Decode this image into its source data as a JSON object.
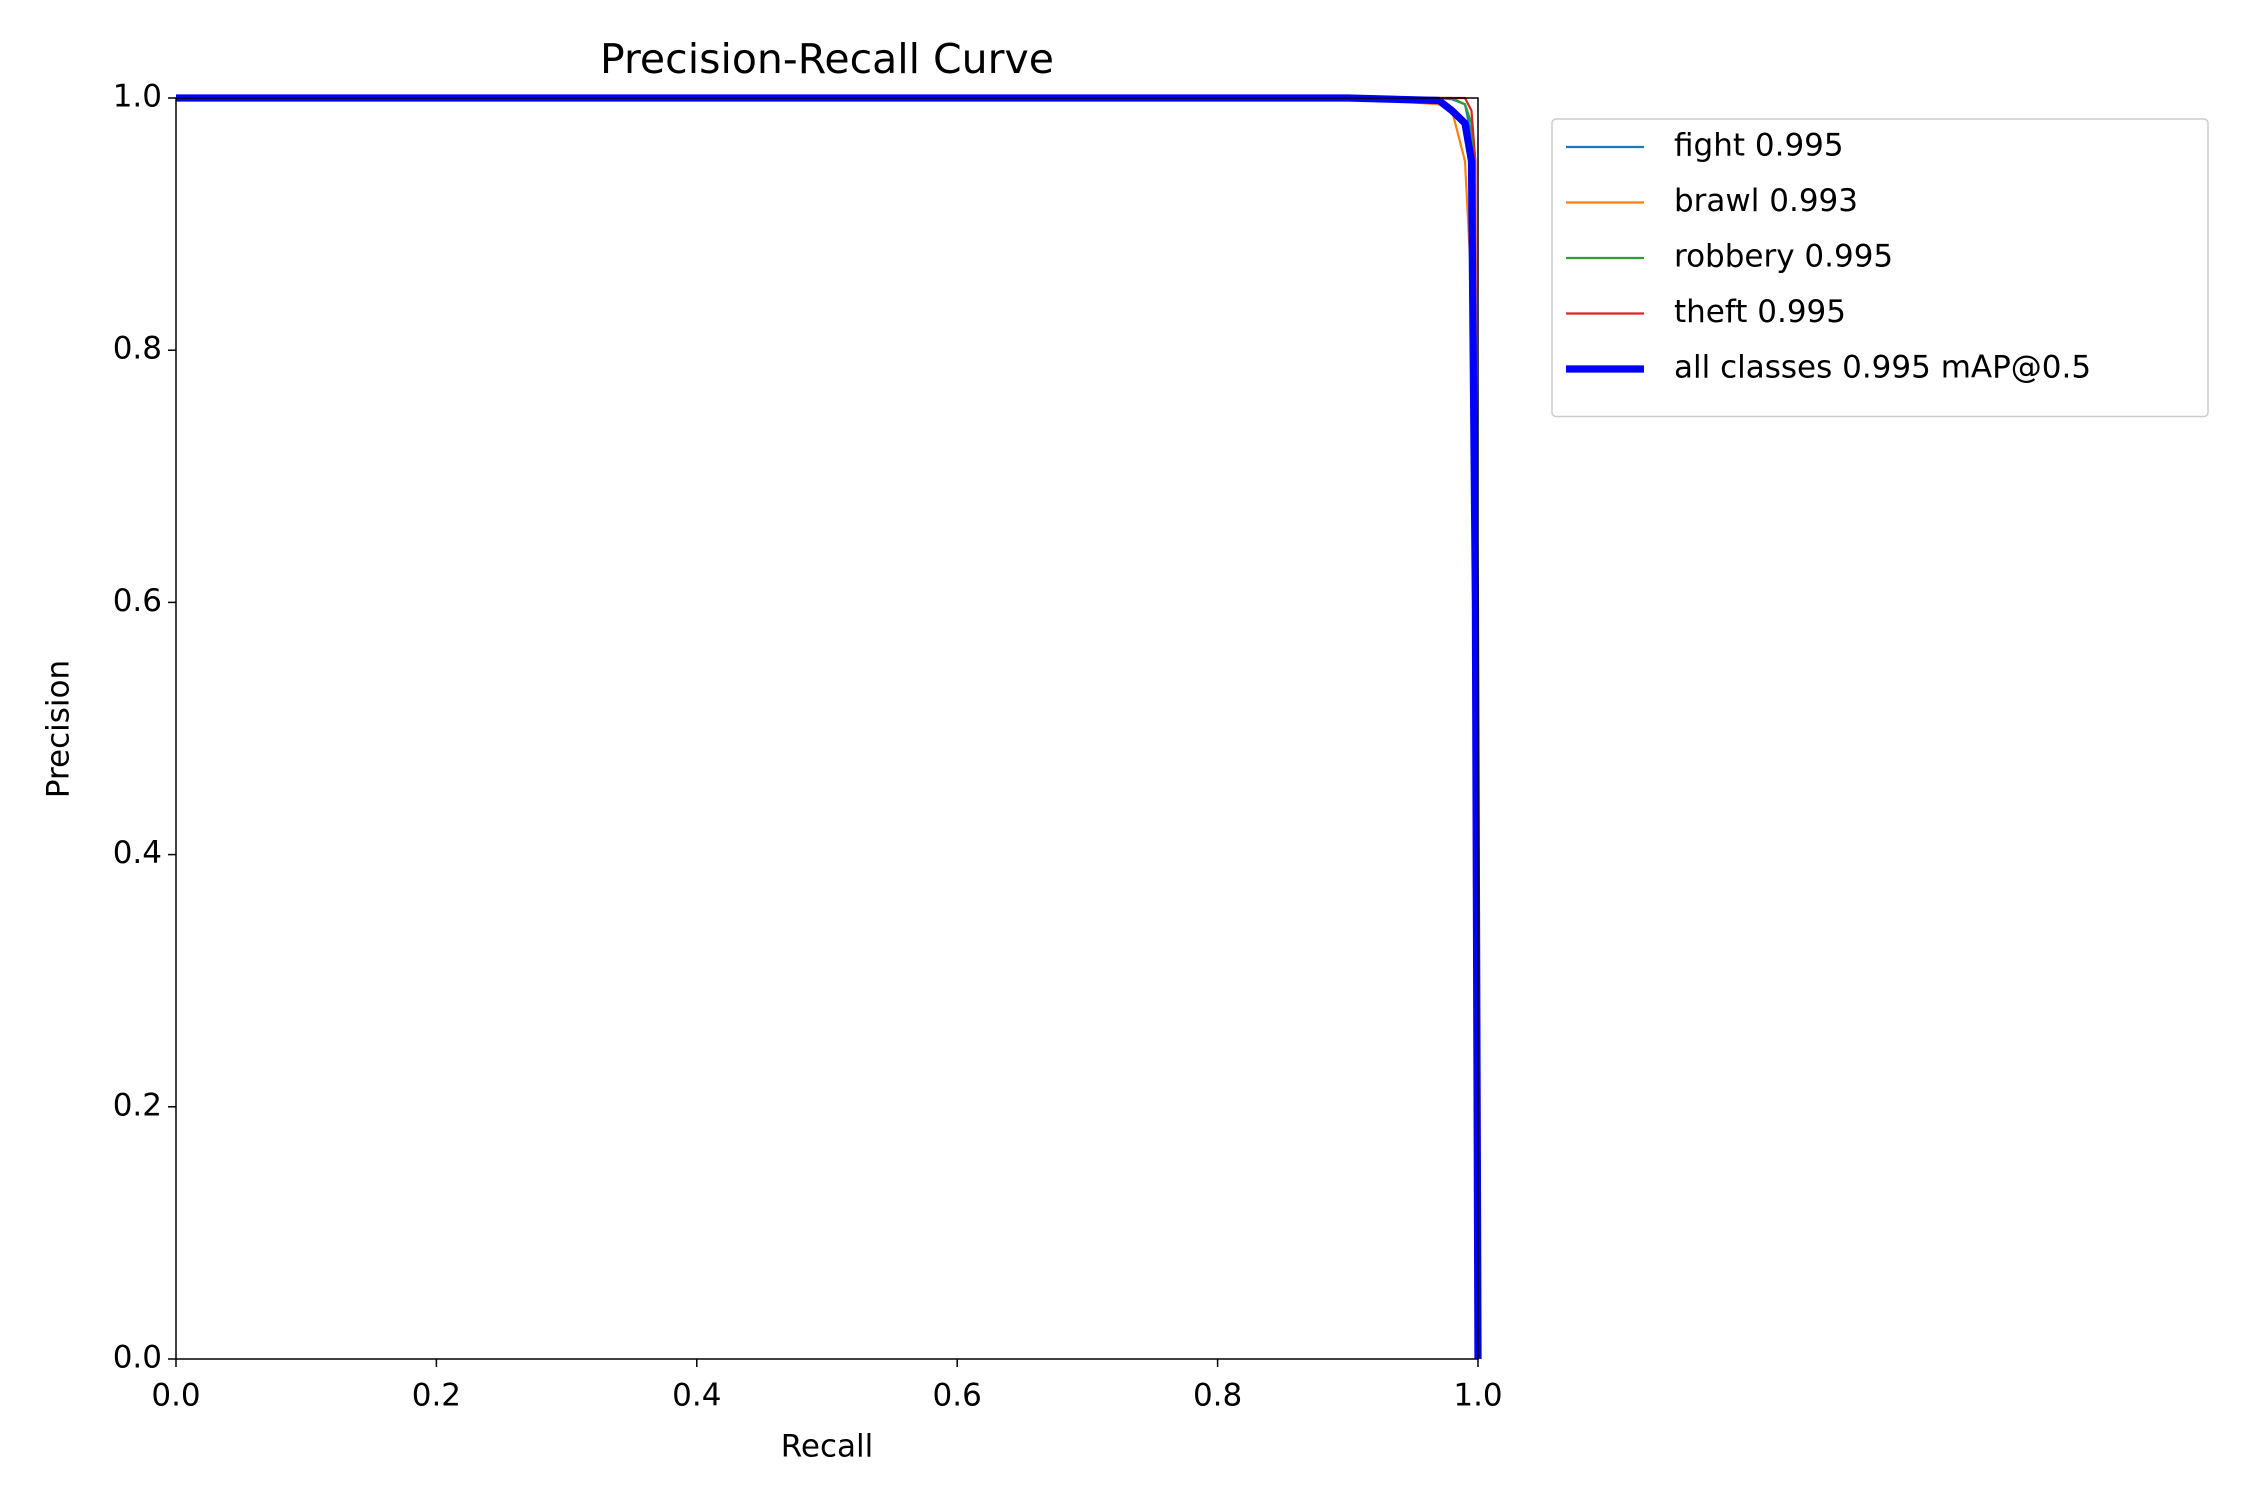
{
  "chart_data": {
    "type": "line",
    "title": "Precision-Recall Curve",
    "xlabel": "Recall",
    "ylabel": "Precision",
    "x": [
      0,
      0.9,
      0.97,
      0.98,
      0.99,
      0.995,
      0.998,
      1.0
    ],
    "series": [
      {
        "name": "fight 0.995",
        "color": "#1f77b4",
        "linewidth": 1.5,
        "values": [
          1,
          1,
          1,
          0.999,
          0.995,
          0.97,
          0.85,
          0
        ]
      },
      {
        "name": "brawl 0.993",
        "color": "#ff7f0e",
        "linewidth": 1.5,
        "values": [
          1,
          1,
          0.995,
          0.99,
          0.95,
          0.85,
          0.7,
          0
        ]
      },
      {
        "name": "robbery 0.995",
        "color": "#2ca02c",
        "linewidth": 1.5,
        "values": [
          1,
          1,
          1,
          1,
          0.995,
          0.98,
          0.9,
          0
        ]
      },
      {
        "name": "theft 0.995",
        "color": "#d62728",
        "linewidth": 1.5,
        "values": [
          1,
          1,
          1,
          1,
          1,
          0.99,
          0.95,
          0
        ]
      },
      {
        "name": "all classes 0.995 mAP@0.5",
        "color": "#0000ff",
        "linewidth": 5,
        "values": [
          1,
          1,
          0.998,
          0.99,
          0.98,
          0.95,
          0.6,
          0
        ]
      }
    ],
    "xlim": [
      0,
      1
    ],
    "ylim": [
      0,
      1
    ],
    "xticks": [
      {
        "value": 0,
        "label": "0.0"
      },
      0.2,
      0.4,
      0.6,
      0.8,
      {
        "value": 1,
        "label": "1.0"
      }
    ],
    "yticks": [
      {
        "value": 0,
        "label": "0.0"
      },
      0.2,
      0.4,
      0.6,
      0.8,
      {
        "value": 1,
        "label": "1.0"
      }
    ],
    "grid": false,
    "legend": "outside right"
  }
}
